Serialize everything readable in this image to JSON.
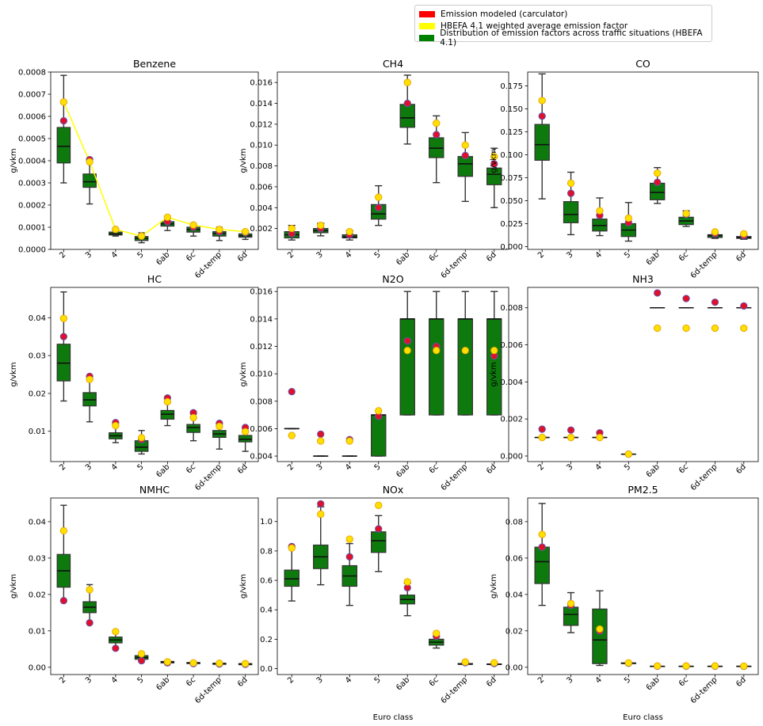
{
  "legend": {
    "items": [
      {
        "label": "Emission modeled (carculator)",
        "color": "#ff0000"
      },
      {
        "label": "HBEFA 4.1 weighted average emission factor",
        "color": "#ffff00"
      },
      {
        "label": "Distribution of emission factors across traffic situations (HBEFA 4.1)",
        "color": "#008000"
      }
    ]
  },
  "colors": {
    "box": "#0e7a0e",
    "model_point": "#e0102a",
    "model_edge": "#5a5ab8",
    "hbefa_point": "#ffe000",
    "hbefa_edge": "#e8a000",
    "line": "#ffff00"
  },
  "chart_data": [
    {
      "type": "box",
      "title": "Benzene",
      "ylabel": "g/vkm",
      "xlabel": "",
      "categories": [
        "2",
        "3",
        "4",
        "5",
        "6ab",
        "6c",
        "6d-temp",
        "6d"
      ],
      "ylim": [
        0,
        0.0008
      ],
      "yticks": [
        "0.0000",
        "0.0001",
        "0.0002",
        "0.0003",
        "0.0004",
        "0.0005",
        "0.0006",
        "0.0007",
        "0.0008"
      ],
      "ytick_values": [
        0,
        0.0001,
        0.0002,
        0.0003,
        0.0004,
        0.0005,
        0.0006,
        0.0007,
        0.0008
      ],
      "show_line": true,
      "boxes": [
        {
          "wl": 0.0003,
          "q1": 0.00039,
          "med": 0.000465,
          "q3": 0.00055,
          "wh": 0.000785
        },
        {
          "wl": 0.000205,
          "q1": 0.00028,
          "med": 0.000305,
          "q3": 0.00034,
          "wh": 0.00041
        },
        {
          "wl": 6e-05,
          "q1": 6.5e-05,
          "med": 7e-05,
          "q3": 7.8e-05,
          "wh": 8.5e-05
        },
        {
          "wl": 3e-05,
          "q1": 4e-05,
          "med": 5e-05,
          "q3": 5.8e-05,
          "wh": 7.5e-05
        },
        {
          "wl": 8.5e-05,
          "q1": 0.000105,
          "med": 0.000115,
          "q3": 0.000125,
          "wh": 0.00015
        },
        {
          "wl": 6e-05,
          "q1": 7.8e-05,
          "med": 9e-05,
          "q3": 0.0001,
          "wh": 0.00011
        },
        {
          "wl": 4e-05,
          "q1": 6e-05,
          "med": 7.2e-05,
          "q3": 8e-05,
          "wh": 0.0001
        },
        {
          "wl": 4.5e-05,
          "q1": 5.5e-05,
          "med": 6.2e-05,
          "q3": 7e-05,
          "wh": 8e-05
        }
      ],
      "modeled": [
        0.00058,
        0.000405,
        9e-05,
        6e-05,
        0.000125,
        0.0001,
        8e-05,
        7.5e-05
      ],
      "hbefa": [
        0.000665,
        0.000395,
        9e-05,
        6e-05,
        0.000145,
        0.00011,
        9e-05,
        8e-05
      ]
    },
    {
      "type": "box",
      "title": "CH4",
      "ylabel": "g/vkm",
      "xlabel": "",
      "categories": [
        "2",
        "3",
        "4",
        "5",
        "6ab",
        "6c",
        "6d-temp",
        "6d"
      ],
      "ylim": [
        0,
        0.017
      ],
      "yticks": [
        "0.002",
        "0.004",
        "0.006",
        "0.008",
        "0.010",
        "0.012",
        "0.014",
        "0.016"
      ],
      "ytick_values": [
        0.002,
        0.004,
        0.006,
        0.008,
        0.01,
        0.012,
        0.014,
        0.016
      ],
      "show_line": false,
      "boxes": [
        {
          "wl": 0.0009,
          "q1": 0.0011,
          "med": 0.0014,
          "q3": 0.0017,
          "wh": 0.0023
        },
        {
          "wl": 0.0013,
          "q1": 0.0016,
          "med": 0.0018,
          "q3": 0.002,
          "wh": 0.0025
        },
        {
          "wl": 0.0009,
          "q1": 0.0011,
          "med": 0.0012,
          "q3": 0.0014,
          "wh": 0.0018
        },
        {
          "wl": 0.0023,
          "q1": 0.0029,
          "med": 0.0034,
          "q3": 0.0043,
          "wh": 0.0061
        },
        {
          "wl": 0.0101,
          "q1": 0.0117,
          "med": 0.0126,
          "q3": 0.0139,
          "wh": 0.0167
        },
        {
          "wl": 0.0064,
          "q1": 0.0088,
          "med": 0.0097,
          "q3": 0.0107,
          "wh": 0.0128
        },
        {
          "wl": 0.0046,
          "q1": 0.007,
          "med": 0.0082,
          "q3": 0.0089,
          "wh": 0.0112
        },
        {
          "wl": 0.004,
          "q1": 0.0062,
          "med": 0.0072,
          "q3": 0.0078,
          "wh": 0.0097
        }
      ],
      "modeled": [
        0.0015,
        0.002,
        0.0014,
        0.004,
        0.014,
        0.011,
        0.009,
        0.0082
      ],
      "hbefa": [
        0.002,
        0.0023,
        0.0017,
        0.005,
        0.016,
        0.0121,
        0.01,
        0.0089
      ]
    },
    {
      "type": "box",
      "title": "CO",
      "ylabel": "g/vkm",
      "xlabel": "",
      "categories": [
        "2",
        "3",
        "4",
        "5",
        "6ab",
        "6c",
        "6d-temp",
        "6d"
      ],
      "ylim": [
        -0.003,
        0.19
      ],
      "yticks": [
        "0.000",
        "0.025",
        "0.050",
        "0.075",
        "0.100",
        "0.125",
        "0.150",
        "0.175"
      ],
      "ytick_values": [
        0,
        0.025,
        0.05,
        0.075,
        0.1,
        0.125,
        0.15,
        0.175
      ],
      "show_line": false,
      "boxes": [
        {
          "wl": 0.052,
          "q1": 0.094,
          "med": 0.111,
          "q3": 0.133,
          "wh": 0.188
        },
        {
          "wl": 0.013,
          "q1": 0.026,
          "med": 0.035,
          "q3": 0.049,
          "wh": 0.081
        },
        {
          "wl": 0.012,
          "q1": 0.017,
          "med": 0.023,
          "q3": 0.03,
          "wh": 0.053
        },
        {
          "wl": 0.006,
          "q1": 0.011,
          "med": 0.018,
          "q3": 0.025,
          "wh": 0.048
        },
        {
          "wl": 0.047,
          "q1": 0.051,
          "med": 0.059,
          "q3": 0.069,
          "wh": 0.086
        },
        {
          "wl": 0.022,
          "q1": 0.024,
          "med": 0.028,
          "q3": 0.032,
          "wh": 0.039
        },
        {
          "wl": 0.009,
          "q1": 0.01,
          "med": 0.012,
          "q3": 0.013,
          "wh": 0.016
        },
        {
          "wl": 0.008,
          "q1": 0.009,
          "med": 0.01,
          "q3": 0.011,
          "wh": 0.014
        }
      ],
      "modeled": [
        0.142,
        0.058,
        0.034,
        0.026,
        0.07,
        0.035,
        0.014,
        0.012
      ],
      "hbefa": [
        0.159,
        0.069,
        0.039,
        0.031,
        0.08,
        0.036,
        0.016,
        0.014
      ]
    },
    {
      "type": "box",
      "title": "HC",
      "ylabel": "g/vkm",
      "xlabel": "",
      "categories": [
        "2",
        "3",
        "4",
        "5",
        "6ab",
        "6c",
        "6d-temp",
        "6d"
      ],
      "ylim": [
        0.002,
        0.048
      ],
      "yticks": [
        "0.01",
        "0.02",
        "0.03",
        "0.04"
      ],
      "ytick_values": [
        0.01,
        0.02,
        0.03,
        0.04
      ],
      "show_line": false,
      "boxes": [
        {
          "wl": 0.018,
          "q1": 0.0233,
          "med": 0.028,
          "q3": 0.033,
          "wh": 0.0468
        },
        {
          "wl": 0.0125,
          "q1": 0.0167,
          "med": 0.0183,
          "q3": 0.0202,
          "wh": 0.0245
        },
        {
          "wl": 0.007,
          "q1": 0.008,
          "med": 0.0088,
          "q3": 0.0096,
          "wh": 0.012
        },
        {
          "wl": 0.004,
          "q1": 0.0047,
          "med": 0.0058,
          "q3": 0.0075,
          "wh": 0.0102
        },
        {
          "wl": 0.0115,
          "q1": 0.0132,
          "med": 0.0145,
          "q3": 0.0155,
          "wh": 0.0185
        },
        {
          "wl": 0.0075,
          "q1": 0.0097,
          "med": 0.011,
          "q3": 0.0118,
          "wh": 0.0145
        },
        {
          "wl": 0.0053,
          "q1": 0.0084,
          "med": 0.0093,
          "q3": 0.0102,
          "wh": 0.012
        },
        {
          "wl": 0.0047,
          "q1": 0.0072,
          "med": 0.0079,
          "q3": 0.0089,
          "wh": 0.0107
        }
      ],
      "modeled": [
        0.035,
        0.0245,
        0.0123,
        0.0078,
        0.0188,
        0.0149,
        0.0121,
        0.011
      ],
      "hbefa": [
        0.0398,
        0.0237,
        0.0115,
        0.0083,
        0.0178,
        0.0136,
        0.0113,
        0.0099
      ]
    },
    {
      "type": "box",
      "title": "N2O",
      "ylabel": "g/vkm",
      "xlabel": "",
      "categories": [
        "2",
        "3",
        "4",
        "5",
        "6ab",
        "6c",
        "6d-temp",
        "6d"
      ],
      "ylim": [
        0.0036,
        0.0163
      ],
      "yticks": [
        "0.004",
        "0.006",
        "0.008",
        "0.010",
        "0.012",
        "0.014",
        "0.016"
      ],
      "ytick_values": [
        0.004,
        0.006,
        0.008,
        0.01,
        0.012,
        0.014,
        0.016
      ],
      "show_line": false,
      "boxes": [
        {
          "wl": 0.006,
          "q1": 0.006,
          "med": 0.006,
          "q3": 0.006,
          "wh": 0.006
        },
        {
          "wl": 0.004,
          "q1": 0.004,
          "med": 0.004,
          "q3": 0.004,
          "wh": 0.004
        },
        {
          "wl": 0.004,
          "q1": 0.004,
          "med": 0.004,
          "q3": 0.004,
          "wh": 0.004
        },
        {
          "wl": 0.004,
          "q1": 0.004,
          "med": 0.007,
          "q3": 0.007,
          "wh": 0.007
        },
        {
          "wl": 0.007,
          "q1": 0.007,
          "med": 0.014,
          "q3": 0.014,
          "wh": 0.016
        },
        {
          "wl": 0.007,
          "q1": 0.007,
          "med": 0.014,
          "q3": 0.014,
          "wh": 0.016
        },
        {
          "wl": 0.007,
          "q1": 0.007,
          "med": 0.014,
          "q3": 0.014,
          "wh": 0.016
        },
        {
          "wl": 0.007,
          "q1": 0.007,
          "med": 0.014,
          "q3": 0.014,
          "wh": 0.016
        }
      ],
      "modeled": [
        0.0087,
        0.0056,
        0.0052,
        0.0069,
        0.0124,
        0.012,
        0.0117,
        0.0113
      ],
      "hbefa": [
        0.0055,
        0.0051,
        0.0051,
        0.0073,
        0.0117,
        0.0117,
        0.0117,
        0.0117
      ]
    },
    {
      "type": "box",
      "title": "NH3",
      "ylabel": "g/vkm",
      "xlabel": "",
      "categories": [
        "2",
        "3",
        "4",
        "5",
        "6ab",
        "6c",
        "6d-temp",
        "6d"
      ],
      "ylim": [
        -0.0003,
        0.0091
      ],
      "yticks": [
        "0.000",
        "0.002",
        "0.004",
        "0.006",
        "0.008"
      ],
      "ytick_values": [
        0,
        0.002,
        0.004,
        0.006,
        0.008
      ],
      "show_line": false,
      "boxes": [
        {
          "wl": 0.001,
          "q1": 0.001,
          "med": 0.001,
          "q3": 0.001,
          "wh": 0.001
        },
        {
          "wl": 0.001,
          "q1": 0.001,
          "med": 0.001,
          "q3": 0.001,
          "wh": 0.001
        },
        {
          "wl": 0.001,
          "q1": 0.001,
          "med": 0.001,
          "q3": 0.001,
          "wh": 0.001
        },
        {
          "wl": 0.0001,
          "q1": 0.0001,
          "med": 0.0001,
          "q3": 0.0001,
          "wh": 0.0001
        },
        {
          "wl": 0.008,
          "q1": 0.008,
          "med": 0.008,
          "q3": 0.008,
          "wh": 0.008
        },
        {
          "wl": 0.008,
          "q1": 0.008,
          "med": 0.008,
          "q3": 0.008,
          "wh": 0.008
        },
        {
          "wl": 0.008,
          "q1": 0.008,
          "med": 0.008,
          "q3": 0.008,
          "wh": 0.008
        },
        {
          "wl": 0.008,
          "q1": 0.008,
          "med": 0.008,
          "q3": 0.008,
          "wh": 0.008
        }
      ],
      "modeled": [
        0.00145,
        0.0014,
        0.00125,
        0.0001,
        0.0088,
        0.0085,
        0.0083,
        0.0081
      ],
      "hbefa": [
        0.001,
        0.001,
        0.001,
        0.0001,
        0.0069,
        0.0069,
        0.0069,
        0.0069
      ]
    },
    {
      "type": "box",
      "title": "NMHC",
      "ylabel": "g/vkm",
      "xlabel": "",
      "categories": [
        "2",
        "3",
        "4",
        "5",
        "6ab",
        "6c",
        "6d-temp",
        "6d"
      ],
      "ylim": [
        -0.002,
        0.0465
      ],
      "yticks": [
        "0.00",
        "0.01",
        "0.02",
        "0.03",
        "0.04"
      ],
      "ytick_values": [
        0,
        0.01,
        0.02,
        0.03,
        0.04
      ],
      "show_line": false,
      "boxes": [
        {
          "wl": 0.018,
          "q1": 0.022,
          "med": 0.0265,
          "q3": 0.031,
          "wh": 0.0445
        },
        {
          "wl": 0.012,
          "q1": 0.015,
          "med": 0.0165,
          "q3": 0.018,
          "wh": 0.0227
        },
        {
          "wl": 0.0055,
          "q1": 0.0067,
          "med": 0.0075,
          "q3": 0.0083,
          "wh": 0.0095
        },
        {
          "wl": 0.0017,
          "q1": 0.0022,
          "med": 0.0027,
          "q3": 0.0032,
          "wh": 0.004
        },
        {
          "wl": 0.001,
          "q1": 0.0012,
          "med": 0.0014,
          "q3": 0.0016,
          "wh": 0.0018
        },
        {
          "wl": 0.0008,
          "q1": 0.001,
          "med": 0.0012,
          "q3": 0.0013,
          "wh": 0.0015
        },
        {
          "wl": 0.0006,
          "q1": 0.0008,
          "med": 0.001,
          "q3": 0.0011,
          "wh": 0.0013
        },
        {
          "wl": 0.0005,
          "q1": 0.0007,
          "med": 0.0009,
          "q3": 0.001,
          "wh": 0.0012
        }
      ],
      "modeled": [
        0.0183,
        0.0122,
        0.0052,
        0.0018,
        0.0012,
        0.001,
        0.0009,
        0.0008
      ],
      "hbefa": [
        0.0375,
        0.0213,
        0.0098,
        0.0037,
        0.0015,
        0.0012,
        0.0011,
        0.001
      ]
    },
    {
      "type": "box",
      "title": "NOx",
      "ylabel": "g/vkm",
      "xlabel": "Euro class",
      "categories": [
        "2",
        "3",
        "4",
        "5",
        "6ab",
        "6c",
        "6d-temp",
        "6d"
      ],
      "ylim": [
        -0.04,
        1.16
      ],
      "yticks": [
        "0.0",
        "0.2",
        "0.4",
        "0.6",
        "0.8",
        "1.0"
      ],
      "ytick_values": [
        0,
        0.2,
        0.4,
        0.6,
        0.8,
        1.0
      ],
      "show_line": false,
      "boxes": [
        {
          "wl": 0.46,
          "q1": 0.56,
          "med": 0.61,
          "q3": 0.67,
          "wh": 0.83
        },
        {
          "wl": 0.57,
          "q1": 0.68,
          "med": 0.76,
          "q3": 0.84,
          "wh": 1.1
        },
        {
          "wl": 0.43,
          "q1": 0.56,
          "med": 0.63,
          "q3": 0.7,
          "wh": 0.85
        },
        {
          "wl": 0.66,
          "q1": 0.79,
          "med": 0.87,
          "q3": 0.93,
          "wh": 1.04
        },
        {
          "wl": 0.36,
          "q1": 0.44,
          "med": 0.47,
          "q3": 0.5,
          "wh": 0.58
        },
        {
          "wl": 0.14,
          "q1": 0.16,
          "med": 0.18,
          "q3": 0.2,
          "wh": 0.22
        },
        {
          "wl": 0.03,
          "q1": 0.03,
          "med": 0.03,
          "q3": 0.035,
          "wh": 0.04
        },
        {
          "wl": 0.025,
          "q1": 0.028,
          "med": 0.03,
          "q3": 0.032,
          "wh": 0.035
        }
      ],
      "modeled": [
        0.83,
        1.12,
        0.76,
        0.95,
        0.55,
        0.22,
        0.04,
        0.035
      ],
      "hbefa": [
        0.82,
        1.05,
        0.88,
        1.11,
        0.59,
        0.24,
        0.045,
        0.04
      ]
    },
    {
      "type": "box",
      "title": "PM2.5",
      "ylabel": "g/vkm",
      "xlabel": "Euro class",
      "categories": [
        "2",
        "3",
        "4",
        "5",
        "6ab",
        "6c",
        "6d-temp",
        "6d"
      ],
      "ylim": [
        -0.004,
        0.093
      ],
      "yticks": [
        "0.00",
        "0.02",
        "0.04",
        "0.06",
        "0.08"
      ],
      "ytick_values": [
        0,
        0.02,
        0.04,
        0.06,
        0.08
      ],
      "show_line": false,
      "boxes": [
        {
          "wl": 0.034,
          "q1": 0.046,
          "med": 0.058,
          "q3": 0.066,
          "wh": 0.09
        },
        {
          "wl": 0.019,
          "q1": 0.023,
          "med": 0.029,
          "q3": 0.033,
          "wh": 0.041
        },
        {
          "wl": 0.001,
          "q1": 0.002,
          "med": 0.015,
          "q3": 0.032,
          "wh": 0.042
        },
        {
          "wl": 0.0018,
          "q1": 0.002,
          "med": 0.0022,
          "q3": 0.0024,
          "wh": 0.0026
        },
        {
          "wl": 0.0003,
          "q1": 0.0004,
          "med": 0.0005,
          "q3": 0.0006,
          "wh": 0.0007
        },
        {
          "wl": 0.0003,
          "q1": 0.0004,
          "med": 0.0005,
          "q3": 0.0006,
          "wh": 0.0007
        },
        {
          "wl": 0.0003,
          "q1": 0.0004,
          "med": 0.0005,
          "q3": 0.0006,
          "wh": 0.0007
        },
        {
          "wl": 0.0003,
          "q1": 0.0004,
          "med": 0.0005,
          "q3": 0.0006,
          "wh": 0.0007
        }
      ],
      "modeled": [
        0.066,
        0.034,
        0.02,
        0.0022,
        0.0006,
        0.0006,
        0.0006,
        0.0005
      ],
      "hbefa": [
        0.073,
        0.035,
        0.021,
        0.0024,
        0.0007,
        0.0007,
        0.0007,
        0.0006
      ]
    }
  ]
}
